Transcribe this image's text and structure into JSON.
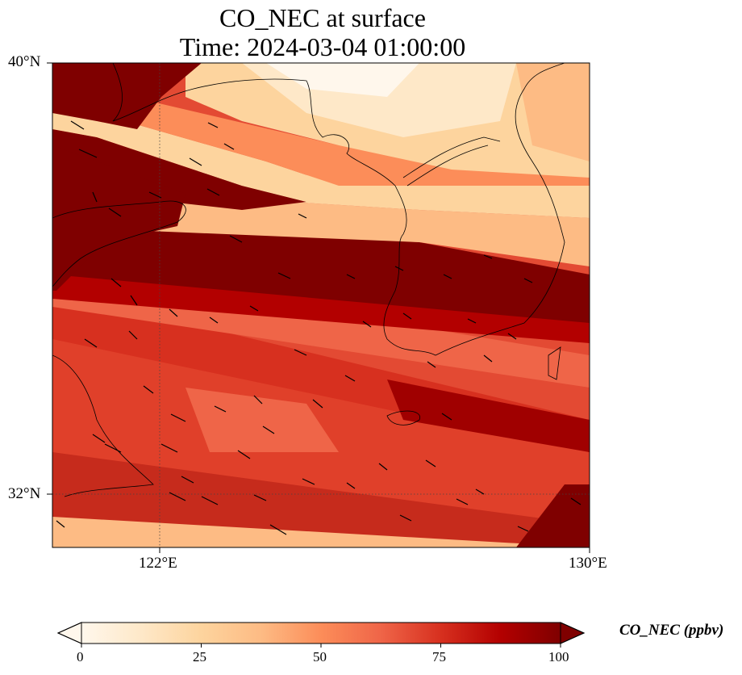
{
  "title": {
    "line1": "CO_NEC at surface",
    "line2": "Time: 2024-03-04 01:00:00"
  },
  "map": {
    "lat_ticks": [
      "40°N",
      "32°N"
    ],
    "lon_ticks": [
      "122°E",
      "130°E"
    ],
    "extent": {
      "lon_min": 120,
      "lon_max": 130,
      "lat_min": 31,
      "lat_max": 40
    },
    "colormap": "OrRd",
    "field_description": "CO concentration bands oriented WNW-ESE with high values (dark red) in a band across ~36-37°N and a broad moderate-high region south of 35°N; low values (pale) over northern Korea and northeast",
    "wind_vectors": "arrows pointing mostly west-northwest"
  },
  "colorbar": {
    "label": "CO_NEC (ppbv)",
    "ticks": [
      "0",
      "25",
      "50",
      "75",
      "100"
    ],
    "min": 0,
    "max": 100,
    "colors": [
      "#fff7ec",
      "#fee8c8",
      "#fdd49e",
      "#fdbb84",
      "#fc8d59",
      "#ef6548",
      "#d7301f",
      "#b30000",
      "#7f0000"
    ]
  }
}
